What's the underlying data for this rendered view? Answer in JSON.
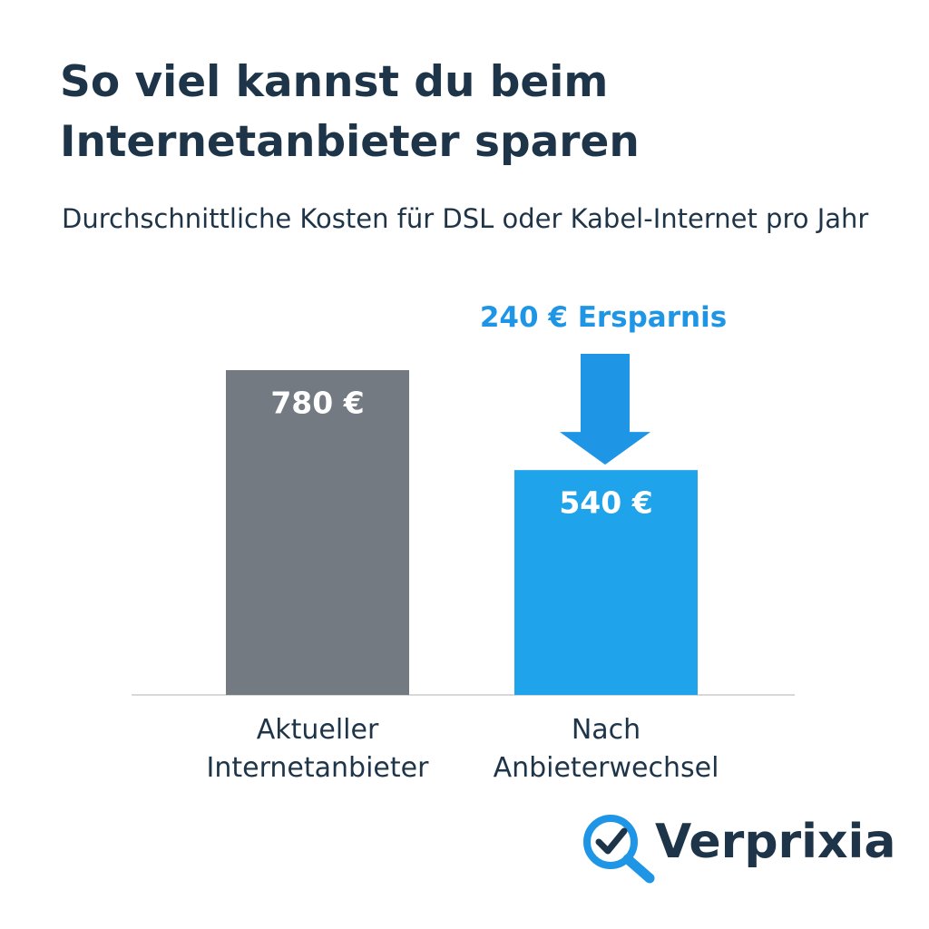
{
  "chart_data": {
    "type": "bar",
    "title": "So viel kannst du beim Internetanbieter sparen",
    "subtitle": "Durchschnittliche Kosten für DSL oder Kabel-Internet pro Jahr",
    "categories": [
      "Aktueller Internetanbieter",
      "Nach Anbieterwechsel"
    ],
    "values": [
      780,
      540
    ],
    "value_labels": [
      "780 €",
      "540 €"
    ],
    "colors": [
      "#737a82",
      "#1fa3ea"
    ],
    "annotation": "240 € Ersparnis",
    "brand": "Verprixia"
  }
}
